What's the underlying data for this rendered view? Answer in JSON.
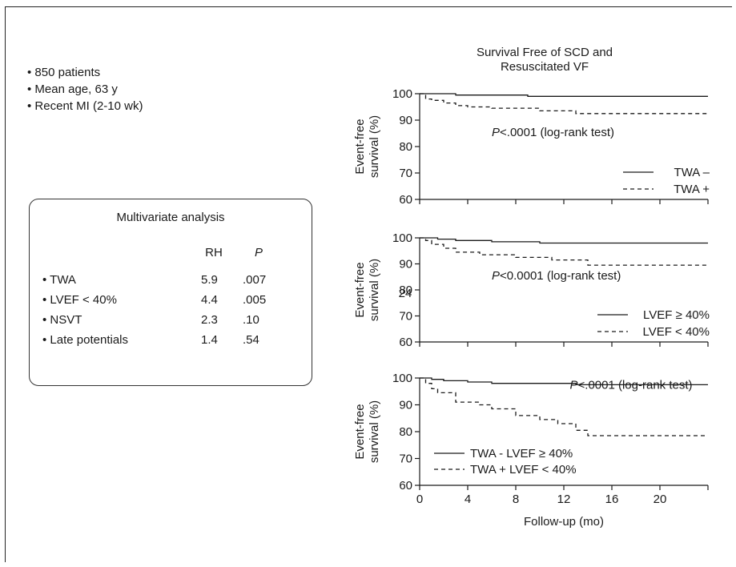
{
  "bullets": [
    "850 patients",
    "Mean age, 63 y",
    "Recent MI (2-10 wk)"
  ],
  "multivariate": {
    "title": "Multivariate analysis",
    "headers": [
      "RH",
      "P"
    ],
    "rows": [
      {
        "label": "TWA",
        "rh": "5.9",
        "p": ".007"
      },
      {
        "label": "LVEF < 40%",
        "rh": "4.4",
        "p": ".005"
      },
      {
        "label": "NSVT",
        "rh": "2.3",
        "p": ".10"
      },
      {
        "label": "Late potentials",
        "rh": "1.4",
        "p": ".54"
      }
    ]
  },
  "colors": {
    "line": "#1a1a1a",
    "axis": "#1a1a1a"
  },
  "chart_data": [
    {
      "type": "line",
      "title": "Survival Free of SCD and Resuscitated VF",
      "title_lines": [
        "Survival Free of SCD and",
        "Resuscitated VF"
      ],
      "ylabel_lines": [
        "Event-free",
        "survival (%)"
      ],
      "xlabel": "",
      "ylim": [
        60,
        100
      ],
      "xlim": [
        0,
        24
      ],
      "yticks": [
        60,
        70,
        80,
        90,
        100
      ],
      "xticks": [
        0,
        4,
        8,
        12,
        16,
        20,
        24
      ],
      "show_x_tick_labels": false,
      "annotation": {
        "p": "P",
        "text": "<.0001 (log-rank test)",
        "x": 6,
        "y": 84
      },
      "stray_label": "",
      "legend_position": "bottom-right",
      "series": [
        {
          "name": "TWA –",
          "style": "solid",
          "x": [
            0,
            3,
            3,
            9,
            9,
            24
          ],
          "y": [
            100,
            100,
            99.5,
            99.5,
            99,
            99
          ]
        },
        {
          "name": "TWA +",
          "style": "dashed",
          "x": [
            0,
            0.5,
            0.5,
            1,
            1,
            2,
            2,
            3,
            3,
            4,
            4,
            6,
            6,
            10,
            10,
            13,
            13,
            24
          ],
          "y": [
            100,
            100,
            98,
            98,
            97.5,
            97.5,
            96.5,
            96.5,
            95.5,
            95.5,
            95,
            95,
            94.5,
            94.5,
            93.5,
            93.5,
            92.5,
            92.5
          ]
        }
      ]
    },
    {
      "type": "line",
      "ylabel_lines": [
        "Event-free",
        "survival (%)"
      ],
      "xlabel": "",
      "ylim": [
        60,
        100
      ],
      "xlim": [
        0,
        24
      ],
      "yticks": [
        60,
        70,
        80,
        90,
        100
      ],
      "xticks": [
        0,
        4,
        8,
        12,
        16,
        20,
        24
      ],
      "show_x_tick_labels": false,
      "annotation": {
        "p": "P",
        "text": "<0.0001 (log-rank test)",
        "x": 6,
        "y": 84
      },
      "stray_label": "24",
      "legend_position": "bottom-right",
      "series": [
        {
          "name": "LVEF ≥ 40%",
          "style": "solid",
          "x": [
            0,
            1.5,
            1.5,
            3,
            3,
            6,
            6,
            10,
            10,
            24
          ],
          "y": [
            100,
            100,
            99.5,
            99.5,
            99,
            99,
            98.5,
            98.5,
            98,
            98
          ]
        },
        {
          "name": "LVEF < 40%",
          "style": "dashed",
          "x": [
            0,
            0.5,
            0.5,
            1,
            1,
            2,
            2,
            3,
            3,
            5,
            5,
            8,
            8,
            11,
            11,
            14,
            14,
            24
          ],
          "y": [
            100,
            100,
            99,
            99,
            97.5,
            97.5,
            96,
            96,
            94.5,
            94.5,
            93.5,
            93.5,
            92.5,
            92.5,
            91.5,
            91.5,
            89.5,
            89.5
          ]
        }
      ]
    },
    {
      "type": "line",
      "ylabel_lines": [
        "Event-free",
        "survival (%)"
      ],
      "xlabel": "Follow-up (mo)",
      "ylim": [
        60,
        100
      ],
      "xlim": [
        0,
        24
      ],
      "yticks": [
        60,
        70,
        80,
        90,
        100
      ],
      "xticks": [
        0,
        4,
        8,
        12,
        16,
        20,
        24
      ],
      "show_x_tick_labels": true,
      "x_tick_labels": [
        "0",
        "4",
        "8",
        "12",
        "16",
        "20",
        ""
      ],
      "annotation": {
        "p": "P",
        "text": "<.0001 (log-rank test)",
        "x": 12.5,
        "y": 96
      },
      "stray_label": "",
      "legend_position": "bottom-left",
      "series": [
        {
          "name": "TWA - LVEF ≥ 40%",
          "style": "solid",
          "x": [
            0,
            1,
            1,
            2,
            2,
            4,
            4,
            6,
            6,
            13,
            13,
            24
          ],
          "y": [
            100,
            100,
            99.5,
            99.5,
            99,
            99,
            98.5,
            98.5,
            98,
            98,
            97.5,
            97.5
          ]
        },
        {
          "name": "TWA + LVEF < 40%",
          "style": "dashed",
          "x": [
            0,
            0.5,
            0.5,
            1,
            1,
            1.5,
            1.5,
            3,
            3,
            5,
            5,
            6,
            6,
            8,
            8,
            10,
            10,
            11.5,
            11.5,
            13,
            13,
            14,
            14,
            24
          ],
          "y": [
            100,
            100,
            98,
            98,
            96,
            96,
            94.5,
            94.5,
            91,
            91,
            90,
            90,
            88.5,
            88.5,
            86,
            86,
            84.5,
            84.5,
            83,
            83,
            80.5,
            80.5,
            78.5,
            78.5
          ]
        }
      ]
    }
  ]
}
